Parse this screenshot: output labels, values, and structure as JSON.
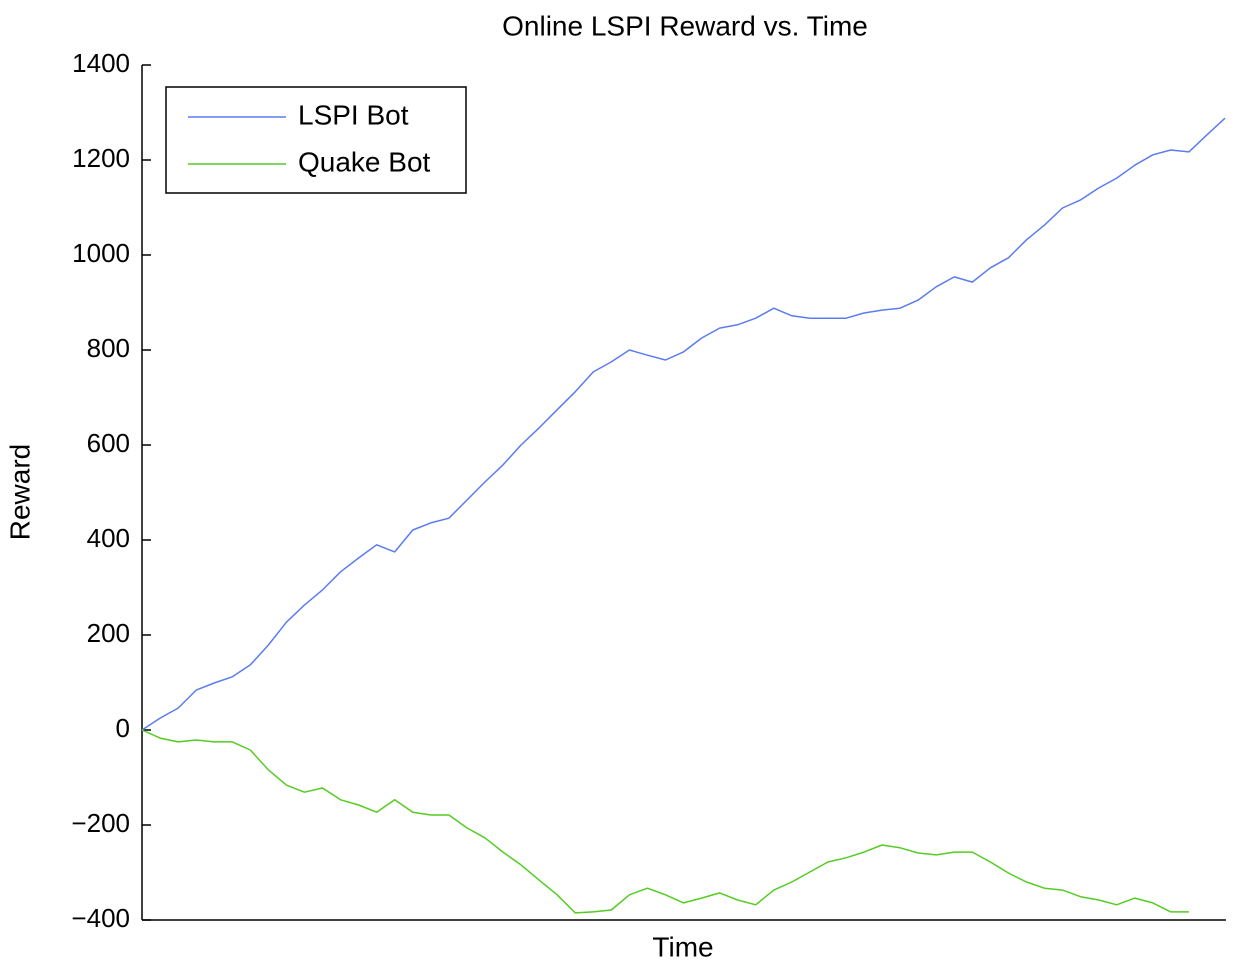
{
  "chart_data": {
    "type": "line",
    "title": "Online LSPI Reward vs. Time",
    "x_label": "Time",
    "y_label": "Reward",
    "categories": [
      null,
      null,
      null,
      null,
      null,
      null,
      null,
      null,
      null,
      null,
      null,
      null,
      null,
      null,
      null,
      null,
      null,
      null,
      null,
      null,
      null,
      null,
      null,
      null,
      null,
      null,
      null,
      null,
      null,
      null,
      null,
      null,
      null,
      null,
      null,
      null,
      null,
      null,
      null,
      null,
      null,
      null,
      null,
      null,
      null,
      null,
      null,
      null,
      null,
      null,
      null,
      null,
      null,
      null,
      null,
      null,
      null,
      null,
      null,
      null,
      null
    ],
    "series": [
      {
        "name": "LSPI Bot",
        "color": "#5b7cf0",
        "values": [
          0,
          25,
          46,
          84,
          99,
          112,
          137,
          179,
          227,
          263,
          295,
          333,
          362,
          390,
          375,
          421,
          436,
          446,
          484,
          522,
          558,
          600,
          636,
          674,
          712,
          754,
          775,
          800,
          789,
          779,
          796,
          825,
          846,
          853,
          867,
          888,
          872,
          867,
          867,
          867,
          878,
          884,
          888,
          905,
          933,
          954,
          943,
          973,
          994,
          1032,
          1063,
          1099,
          1116,
          1141,
          1162,
          1189,
          1211,
          1221,
          1217,
          1253,
          1288
        ]
      },
      {
        "name": "Quake Bot",
        "color": "#55cc22",
        "values": [
          0,
          -17,
          -25,
          -21,
          -25,
          -25,
          -42,
          -84,
          -116,
          -131,
          -122,
          -147,
          -158,
          -173,
          -147,
          -173,
          -179,
          -179,
          -206,
          -227,
          -257,
          -284,
          -316,
          -347,
          -385,
          -383,
          -379,
          -347,
          -333,
          -347,
          -364,
          -354,
          -343,
          -358,
          -368,
          -337,
          -320,
          -299,
          -278,
          -269,
          -257,
          -242,
          -248,
          -259,
          -263,
          -257,
          -257,
          -278,
          -301,
          -320,
          -333,
          -337,
          -351,
          -358,
          -368,
          -354,
          -364,
          -383,
          -383,
          null,
          null
        ]
      }
    ],
    "ylim": [
      -400,
      1400
    ],
    "yticks": [
      {
        "value": -400,
        "label": "−400"
      },
      {
        "value": -200,
        "label": "−200"
      },
      0,
      200,
      400,
      600,
      800,
      1000,
      1200,
      1400
    ],
    "legend": "upper left",
    "grid": false
  }
}
